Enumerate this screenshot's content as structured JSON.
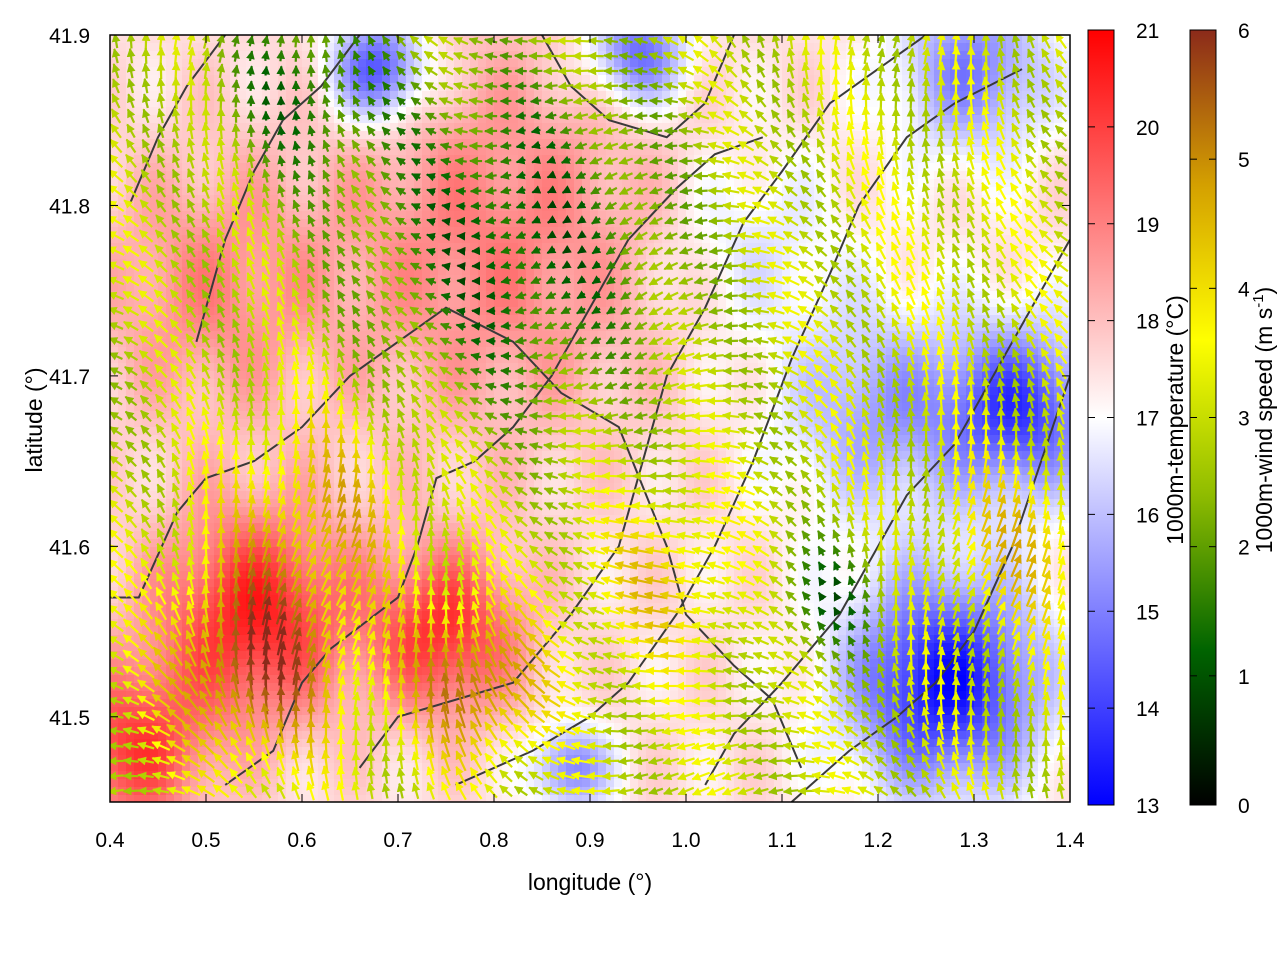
{
  "chart_data": {
    "type": "heatmap",
    "title": "",
    "xlabel": "longitude (°)",
    "ylabel": "latitude (°)",
    "xlim": [
      0.4,
      1.4
    ],
    "ylim": [
      41.45,
      41.9
    ],
    "xticks": [
      0.4,
      0.5,
      0.6,
      0.7,
      0.8,
      0.9,
      1.0,
      1.1,
      1.2,
      1.3,
      1.4
    ],
    "yticks": [
      41.5,
      41.6,
      41.7,
      41.8,
      41.9
    ],
    "xtick_labels": [
      "0.4",
      "0.5",
      "0.6",
      "0.7",
      "0.8",
      "0.9",
      "1.0",
      "1.1",
      "1.2",
      "1.3",
      "1.4"
    ],
    "ytick_labels": [
      "41.5",
      "41.6",
      "41.7",
      "41.8",
      "41.9"
    ],
    "temperature_colorbar": {
      "label": "1000m-temperature (°C)",
      "range": [
        13,
        21
      ],
      "ticks": [
        13,
        14,
        15,
        16,
        17,
        18,
        19,
        20,
        21
      ],
      "tick_labels": [
        "13",
        "14",
        "15",
        "16",
        "17",
        "18",
        "19",
        "20",
        "21"
      ],
      "colors": [
        "#0000ff",
        "#ffffff",
        "#ff0000"
      ]
    },
    "wind_colorbar": {
      "label": "1000m-wind speed (m s",
      "label_superscript": "-1",
      "label_close": ")",
      "range": [
        0,
        6
      ],
      "ticks": [
        0,
        1,
        2,
        3,
        4,
        5,
        6
      ],
      "tick_labels": [
        "0",
        "1",
        "2",
        "3",
        "4",
        "5",
        "6"
      ],
      "colors": [
        "#000000",
        "#006400",
        "#8fbc00",
        "#ffff00",
        "#d4a000",
        "#8b2a1a"
      ]
    },
    "temperature_centers": [
      {
        "lon": 0.55,
        "lat": 41.56,
        "t": 20.5,
        "r": 0.1
      },
      {
        "lon": 0.75,
        "lat": 41.55,
        "t": 20.2,
        "r": 0.08
      },
      {
        "lon": 0.8,
        "lat": 41.78,
        "t": 19.0,
        "r": 0.18
      },
      {
        "lon": 0.5,
        "lat": 41.75,
        "t": 18.8,
        "r": 0.12
      },
      {
        "lon": 0.42,
        "lat": 41.48,
        "t": 20.0,
        "r": 0.08
      },
      {
        "lon": 0.68,
        "lat": 41.88,
        "t": 14.0,
        "r": 0.05
      },
      {
        "lon": 0.95,
        "lat": 41.89,
        "t": 14.5,
        "r": 0.05
      },
      {
        "lon": 1.3,
        "lat": 41.88,
        "t": 15.0,
        "r": 0.08
      },
      {
        "lon": 1.27,
        "lat": 41.52,
        "t": 13.2,
        "r": 0.1
      },
      {
        "lon": 1.35,
        "lat": 41.68,
        "t": 14.0,
        "r": 0.08
      },
      {
        "lon": 1.2,
        "lat": 41.68,
        "t": 15.5,
        "r": 0.1
      },
      {
        "lon": 0.88,
        "lat": 41.47,
        "t": 15.0,
        "r": 0.04
      },
      {
        "lon": 1.07,
        "lat": 41.78,
        "t": 16.5,
        "r": 0.09
      }
    ],
    "wind_regions": [
      {
        "lon": 0.55,
        "lat": 41.53,
        "speed": 5.8,
        "r": 0.09
      },
      {
        "lon": 0.78,
        "lat": 41.52,
        "speed": 5.5,
        "r": 0.07
      },
      {
        "lon": 0.62,
        "lat": 41.62,
        "speed": 4.5,
        "r": 0.1
      },
      {
        "lon": 0.98,
        "lat": 41.58,
        "speed": 4.2,
        "r": 0.08
      },
      {
        "lon": 1.35,
        "lat": 41.6,
        "speed": 4.3,
        "r": 0.08
      },
      {
        "lon": 1.25,
        "lat": 41.78,
        "speed": 3.2,
        "r": 0.12
      },
      {
        "lon": 0.45,
        "lat": 41.7,
        "speed": 2.8,
        "r": 0.08
      },
      {
        "lon": 0.82,
        "lat": 41.78,
        "speed": 1.0,
        "r": 0.16
      },
      {
        "lon": 0.6,
        "lat": 41.87,
        "speed": 1.4,
        "r": 0.09
      },
      {
        "lon": 1.15,
        "lat": 41.57,
        "speed": 1.3,
        "r": 0.06
      }
    ],
    "contours": [
      [
        [
          0.4,
          41.57
        ],
        [
          0.43,
          41.57
        ],
        [
          0.47,
          41.62
        ],
        [
          0.5,
          41.64
        ],
        [
          0.55,
          41.65
        ],
        [
          0.6,
          41.67
        ],
        [
          0.65,
          41.7
        ],
        [
          0.7,
          41.72
        ],
        [
          0.75,
          41.74
        ],
        [
          0.82,
          41.72
        ],
        [
          0.87,
          41.69
        ],
        [
          0.93,
          41.67
        ],
        [
          0.98,
          41.6
        ],
        [
          1.0,
          41.56
        ],
        [
          1.05,
          41.53
        ],
        [
          1.09,
          41.51
        ],
        [
          1.12,
          41.47
        ]
      ],
      [
        [
          0.52,
          41.46
        ],
        [
          0.57,
          41.48
        ],
        [
          0.6,
          41.52
        ],
        [
          0.63,
          41.54
        ],
        [
          0.7,
          41.57
        ],
        [
          0.72,
          41.6
        ],
        [
          0.74,
          41.64
        ],
        [
          0.78,
          41.65
        ],
        [
          0.82,
          41.67
        ],
        [
          0.86,
          41.7
        ],
        [
          0.9,
          41.74
        ],
        [
          0.94,
          41.78
        ],
        [
          0.99,
          41.81
        ],
        [
          1.03,
          41.83
        ],
        [
          1.08,
          41.84
        ]
      ],
      [
        [
          0.66,
          41.47
        ],
        [
          0.7,
          41.5
        ],
        [
          0.76,
          41.51
        ],
        [
          0.82,
          41.52
        ],
        [
          0.88,
          41.56
        ],
        [
          0.93,
          41.6
        ],
        [
          0.96,
          41.66
        ],
        [
          0.98,
          41.7
        ],
        [
          1.02,
          41.74
        ],
        [
          1.06,
          41.79
        ],
        [
          1.1,
          41.82
        ],
        [
          1.15,
          41.86
        ],
        [
          1.2,
          41.88
        ],
        [
          1.25,
          41.9
        ]
      ],
      [
        [
          0.76,
          41.46
        ],
        [
          0.84,
          41.48
        ],
        [
          0.9,
          41.5
        ],
        [
          0.94,
          41.52
        ],
        [
          0.99,
          41.56
        ],
        [
          1.03,
          41.6
        ],
        [
          1.07,
          41.65
        ],
        [
          1.11,
          41.71
        ],
        [
          1.15,
          41.76
        ],
        [
          1.18,
          41.8
        ],
        [
          1.23,
          41.84
        ],
        [
          1.28,
          41.86
        ],
        [
          1.35,
          41.88
        ]
      ],
      [
        [
          1.02,
          41.46
        ],
        [
          1.05,
          41.49
        ],
        [
          1.1,
          41.52
        ],
        [
          1.16,
          41.56
        ],
        [
          1.2,
          41.6
        ],
        [
          1.23,
          41.63
        ],
        [
          1.28,
          41.66
        ],
        [
          1.32,
          41.7
        ],
        [
          1.36,
          41.74
        ],
        [
          1.4,
          41.78
        ]
      ],
      [
        [
          1.11,
          41.45
        ],
        [
          1.17,
          41.48
        ],
        [
          1.22,
          41.5
        ],
        [
          1.26,
          41.52
        ],
        [
          1.3,
          41.55
        ],
        [
          1.34,
          41.6
        ],
        [
          1.37,
          41.65
        ],
        [
          1.4,
          41.7
        ]
      ],
      [
        [
          0.49,
          41.72
        ],
        [
          0.52,
          41.78
        ],
        [
          0.55,
          41.82
        ],
        [
          0.58,
          41.85
        ],
        [
          0.62,
          41.87
        ],
        [
          0.66,
          41.9
        ]
      ],
      [
        [
          0.42,
          41.8
        ],
        [
          0.45,
          41.84
        ],
        [
          0.48,
          41.87
        ],
        [
          0.52,
          41.9
        ]
      ],
      [
        [
          0.85,
          41.9
        ],
        [
          0.88,
          41.87
        ],
        [
          0.92,
          41.85
        ],
        [
          0.98,
          41.84
        ],
        [
          1.02,
          41.86
        ],
        [
          1.05,
          41.9
        ]
      ]
    ]
  }
}
